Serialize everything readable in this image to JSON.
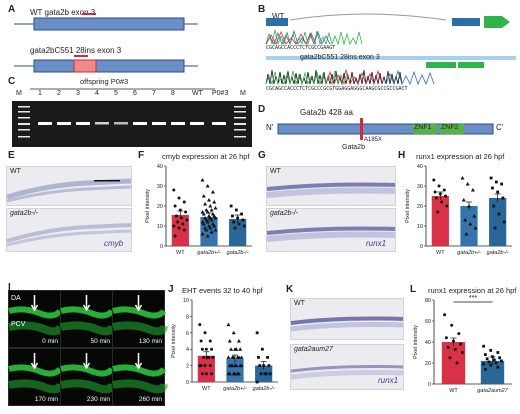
{
  "panels": {
    "A": {
      "label": "A",
      "wt_label": "WT gata2b exon 3",
      "mut_label": "gata2bC551 28ins exon 3"
    },
    "B": {
      "label": "B",
      "wt_label": "WT",
      "mut_label": "gata2bC551 28ins exon 3",
      "wt_seq": "CGCAGCCACCCTCTCGCCGAAGT",
      "mut_seq": "CGCAGCCACCCTCTCGCCCGCGTGGAGGAGGGCAAGCGCCGCCGACT"
    },
    "C": {
      "label": "C",
      "title": "offspring P0#3",
      "lanes": [
        "M",
        "1",
        "2",
        "3",
        "4",
        "5",
        "6",
        "7",
        "8",
        "WT",
        "P0#3",
        "M"
      ]
    },
    "D": {
      "label": "D",
      "protein": "Gata2b 428 aa",
      "n_term": "N'",
      "c_term": "C'",
      "mutation": "A185X",
      "domain1": "ZNF1",
      "domain2": "ZNF2",
      "marker": "Gata2b"
    },
    "E": {
      "label": "E",
      "top": "WT",
      "bottom": "gata2b-/-",
      "probe": "cmyb"
    },
    "F": {
      "label": "F",
      "title": "cmyb expression at 26 hpf",
      "ylabel": "Pixel intensity"
    },
    "G": {
      "label": "G",
      "top": "WT",
      "bottom": "gata2b-/-",
      "probe": "runx1"
    },
    "H": {
      "label": "H",
      "title": "runx1 expression at 26 hpf",
      "ylabel": "Pixel intensity"
    },
    "I": {
      "label": "I",
      "da": "DA",
      "pcv": "PCV",
      "times": [
        "0 min",
        "50 min",
        "130 min",
        "170 min",
        "230 min",
        "260 min"
      ]
    },
    "J": {
      "label": "J",
      "title": "EHT events 32 to 40 hpf",
      "ylabel": "Pixel intensity"
    },
    "K": {
      "label": "K",
      "top": "WT",
      "bottom": "gata2aum27",
      "probe": "runx1"
    },
    "L": {
      "label": "L",
      "title": "runx1 expression at 26 hpf",
      "ylabel": "Pixel intensity",
      "significance": "***"
    }
  },
  "colors": {
    "wt": "#d7263d",
    "het": "#2b6ea8",
    "mut": "#1f5f94",
    "exon": "#6a8fc7",
    "insert": "#f08a8a"
  },
  "chart_data": [
    {
      "type": "bar",
      "panel": "F",
      "title": "cmyb expression at 26 hpf",
      "ylabel": "Pixel intensity",
      "categories": [
        "WT",
        "gata2b+/-",
        "gata2b-/-"
      ],
      "values": [
        15.5,
        14.5,
        13.5
      ],
      "ylim": [
        0,
        40
      ],
      "yticks": [
        0,
        10,
        20,
        30,
        40
      ],
      "points": [
        [
          28,
          24,
          22,
          20,
          18,
          17,
          15,
          14,
          13,
          12,
          11,
          10,
          9,
          8,
          5
        ],
        [
          33,
          30,
          27,
          25,
          23,
          22,
          21,
          20,
          19,
          18,
          18,
          17,
          17,
          16,
          16,
          15,
          15,
          14,
          14,
          14,
          13,
          13,
          12,
          12,
          11,
          11,
          10,
          10,
          9,
          9,
          8,
          8,
          7,
          6,
          5
        ],
        [
          20,
          18,
          16,
          15,
          14,
          13,
          12,
          11,
          10,
          9
        ]
      ],
      "colors": [
        "#d7263d",
        "#2b6ea8",
        "#1f5f94"
      ]
    },
    {
      "type": "bar",
      "panel": "H",
      "title": "runx1 expression at 26 hpf",
      "ylabel": "Pixel intensity",
      "categories": [
        "WT",
        "gata2b+/-",
        "gata2b-/-"
      ],
      "values": [
        25,
        20,
        24
      ],
      "ylim": [
        0,
        40
      ],
      "yticks": [
        0,
        10,
        20,
        30,
        40
      ],
      "points": [
        [
          33,
          30,
          28,
          27,
          26,
          25,
          24,
          22,
          20,
          17
        ],
        [
          34,
          31,
          28,
          23,
          20,
          15,
          13,
          11,
          9,
          6
        ],
        [
          34,
          32,
          31,
          29,
          27,
          24,
          20,
          16,
          12,
          9
        ]
      ],
      "colors": [
        "#d7263d",
        "#2b6ea8",
        "#1f5f94"
      ]
    },
    {
      "type": "bar",
      "panel": "J",
      "title": "EHT events 32 to 40 hpf",
      "ylabel": "Pixel intensity",
      "categories": [
        "WT",
        "gata2b+/-",
        "gata2b-/-"
      ],
      "values": [
        3.2,
        2.8,
        2.0
      ],
      "ylim": [
        0,
        10
      ],
      "yticks": [
        0,
        2,
        4,
        6,
        8,
        10
      ],
      "points": [
        [
          7,
          6,
          5,
          5,
          4,
          4,
          4,
          3,
          3,
          3,
          3,
          2,
          2,
          2,
          2,
          1,
          1,
          1
        ],
        [
          7,
          6,
          5,
          5,
          4,
          4,
          4,
          4,
          3,
          3,
          3,
          3,
          3,
          3,
          2,
          2,
          2,
          2,
          2,
          2,
          2,
          1,
          1,
          1,
          1,
          1,
          1
        ],
        [
          6,
          4,
          3,
          3,
          2,
          2,
          2,
          1,
          1,
          1,
          1,
          0
        ]
      ],
      "colors": [
        "#d7263d",
        "#2b6ea8",
        "#1f5f94"
      ]
    },
    {
      "type": "bar",
      "panel": "L",
      "title": "runx1 expression at 26 hpf",
      "ylabel": "Pixel intensity",
      "categories": [
        "WT",
        "gata2aum27"
      ],
      "values": [
        40,
        22
      ],
      "ylim": [
        0,
        80
      ],
      "yticks": [
        0,
        20,
        40,
        60,
        80
      ],
      "points": [
        [
          66,
          56,
          48,
          44,
          41,
          38,
          35,
          33,
          30,
          25,
          20
        ],
        [
          36,
          32,
          30,
          28,
          26,
          25,
          24,
          23,
          22,
          21,
          20,
          19,
          18,
          16,
          14
        ]
      ],
      "colors": [
        "#d7263d",
        "#1f5f94"
      ]
    }
  ]
}
